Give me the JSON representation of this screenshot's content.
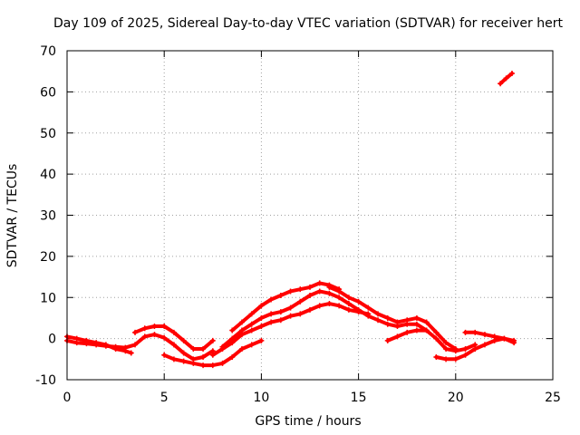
{
  "chart_data": {
    "type": "scatter",
    "title": "Day 109 of 2025, Sidereal Day-to-day VTEC variation (SDTVAR) for receiver hert",
    "xlabel": "GPS time / hours",
    "ylabel": "SDTVAR / TECUs",
    "xlim": [
      0,
      25
    ],
    "ylim": [
      -10,
      70
    ],
    "xticks": [
      "0",
      "5",
      "10",
      "15",
      "20",
      "25"
    ],
    "yticks": [
      "-10",
      "0",
      "10",
      "20",
      "30",
      "40",
      "50",
      "60",
      "70"
    ],
    "grid": true,
    "series": [
      {
        "name": "track-1",
        "color": "#ff0000",
        "x": [
          0.0,
          0.5,
          1.0,
          1.5,
          2.0,
          2.5,
          3.0,
          3.5,
          4.0,
          4.5,
          5.0,
          5.5,
          6.0,
          6.5,
          7.0,
          7.5
        ],
        "y": [
          -0.5,
          -1.0,
          -1.2,
          -1.5,
          -1.8,
          -2.0,
          -2.2,
          -1.5,
          0.5,
          1.0,
          0.2,
          -1.5,
          -3.5,
          -5.0,
          -4.5,
          -3.0
        ]
      },
      {
        "name": "track-2",
        "color": "#ff0000",
        "x": [
          0.0,
          0.5,
          1.0,
          1.5,
          2.0,
          2.5,
          3.0,
          3.3
        ],
        "y": [
          0.5,
          0.0,
          -0.5,
          -1.0,
          -1.5,
          -2.5,
          -3.0,
          -3.5
        ]
      },
      {
        "name": "track-3",
        "color": "#ff0000",
        "x": [
          3.5,
          4.0,
          4.5,
          5.0,
          5.5,
          6.0,
          6.5,
          7.0,
          7.5
        ],
        "y": [
          1.5,
          2.5,
          3.0,
          3.0,
          1.5,
          -0.5,
          -2.5,
          -2.5,
          -0.5
        ]
      },
      {
        "name": "track-4",
        "color": "#ff0000",
        "x": [
          5.0,
          5.5,
          6.0,
          6.5,
          7.0,
          7.5,
          8.0,
          8.5,
          9.0,
          9.5,
          10.0
        ],
        "y": [
          -4.0,
          -5.0,
          -5.5,
          -6.0,
          -6.5,
          -6.5,
          -6.0,
          -4.5,
          -2.5,
          -1.5,
          -0.5
        ]
      },
      {
        "name": "track-5",
        "color": "#ff0000",
        "x": [
          7.5,
          8.0,
          8.5,
          9.0,
          9.5,
          10.0,
          10.5,
          11.0,
          11.5,
          12.0,
          12.5,
          13.0,
          13.5,
          14.0,
          14.5,
          15.0,
          15.5
        ],
        "y": [
          -4.0,
          -2.5,
          -1.0,
          1.0,
          2.0,
          3.0,
          4.0,
          4.5,
          5.5,
          6.0,
          7.0,
          8.0,
          8.5,
          8.0,
          7.0,
          6.5,
          6.0
        ]
      },
      {
        "name": "track-6",
        "color": "#ff0000",
        "x": [
          8.0,
          8.5,
          9.0,
          9.5,
          10.0,
          10.5,
          11.0,
          11.5,
          12.0,
          12.5,
          13.0,
          13.5,
          14.0,
          14.5,
          15.0,
          15.5,
          16.0,
          16.5,
          17.0,
          17.5,
          18.0,
          18.5,
          19.0,
          19.5,
          20.0,
          20.5,
          21.0
        ],
        "y": [
          -2.0,
          0.0,
          2.0,
          3.5,
          5.0,
          6.0,
          6.5,
          7.5,
          9.0,
          10.5,
          11.5,
          11.0,
          10.0,
          8.5,
          7.0,
          5.5,
          4.5,
          3.5,
          3.0,
          3.5,
          3.5,
          2.0,
          0.0,
          -2.5,
          -3.0,
          -2.5,
          -1.5
        ]
      },
      {
        "name": "track-7",
        "color": "#ff0000",
        "x": [
          8.5,
          9.0,
          9.5,
          10.0,
          10.5,
          11.0,
          11.5,
          12.0,
          12.5,
          13.0,
          13.5,
          14.0
        ],
        "y": [
          2.0,
          4.0,
          6.0,
          8.0,
          9.5,
          10.5,
          11.5,
          12.0,
          12.5,
          13.5,
          13.0,
          12.0
        ]
      },
      {
        "name": "track-8",
        "color": "#ff0000",
        "x": [
          13.5,
          14.0,
          14.5,
          15.0,
          15.5,
          16.0,
          16.5,
          17.0,
          17.5,
          18.0,
          18.5,
          19.0,
          19.5,
          20.0
        ],
        "y": [
          12.5,
          11.5,
          10.0,
          9.0,
          7.5,
          6.0,
          5.0,
          4.0,
          4.5,
          5.0,
          4.0,
          1.5,
          -1.0,
          -2.5
        ]
      },
      {
        "name": "track-9",
        "color": "#ff0000",
        "x": [
          16.5,
          17.0,
          17.5,
          18.0,
          18.5
        ],
        "y": [
          -0.5,
          0.5,
          1.5,
          2.0,
          2.0
        ]
      },
      {
        "name": "track-10",
        "color": "#ff0000",
        "x": [
          19.0,
          19.5,
          20.0,
          20.5,
          21.0,
          21.5,
          22.0,
          22.5,
          23.0
        ],
        "y": [
          -4.5,
          -5.0,
          -5.0,
          -4.0,
          -2.5,
          -1.5,
          -0.5,
          0.0,
          -1.0
        ]
      },
      {
        "name": "track-11",
        "color": "#ff0000",
        "x": [
          20.5,
          21.0,
          21.5,
          22.0,
          22.5,
          23.0
        ],
        "y": [
          1.5,
          1.5,
          1.0,
          0.5,
          0.0,
          -0.5
        ]
      },
      {
        "name": "track-12",
        "color": "#ff0000",
        "x": [
          22.3,
          22.6,
          22.9
        ],
        "y": [
          62.0,
          63.3,
          64.5
        ]
      }
    ]
  }
}
